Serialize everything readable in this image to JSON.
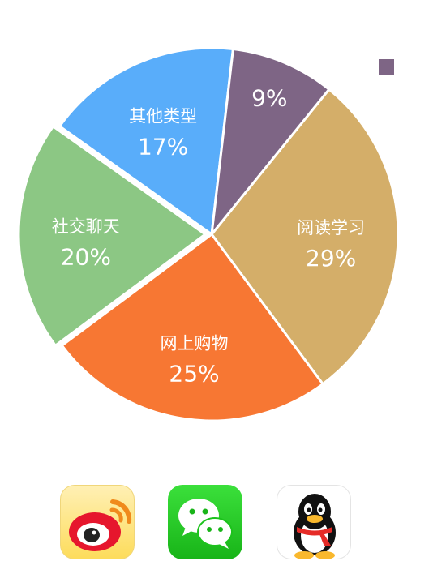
{
  "chart_data": {
    "type": "pie",
    "categories": [
      "阅读学习",
      "网上购物",
      "社交聊天",
      "其他类型",
      "9%"
    ],
    "labels": [
      "阅读学习",
      "网上购物",
      "社交聊天",
      "其他类型",
      ""
    ],
    "values": [
      29,
      25,
      20,
      17,
      9
    ],
    "value_labels": [
      "29%",
      "25%",
      "20%",
      "17%",
      "9%"
    ],
    "colors": [
      "#d4ae69",
      "#f77733",
      "#8cc784",
      "#59adfa",
      "#7e6585"
    ],
    "exploded": [
      false,
      false,
      true,
      false,
      false
    ],
    "start_angle_deg": 39,
    "legend": {
      "placement": "top-right",
      "color": "#7e6585"
    }
  },
  "apps": [
    {
      "name": "weibo-app-icon"
    },
    {
      "name": "wechat-app-icon"
    },
    {
      "name": "qq-app-icon"
    }
  ]
}
